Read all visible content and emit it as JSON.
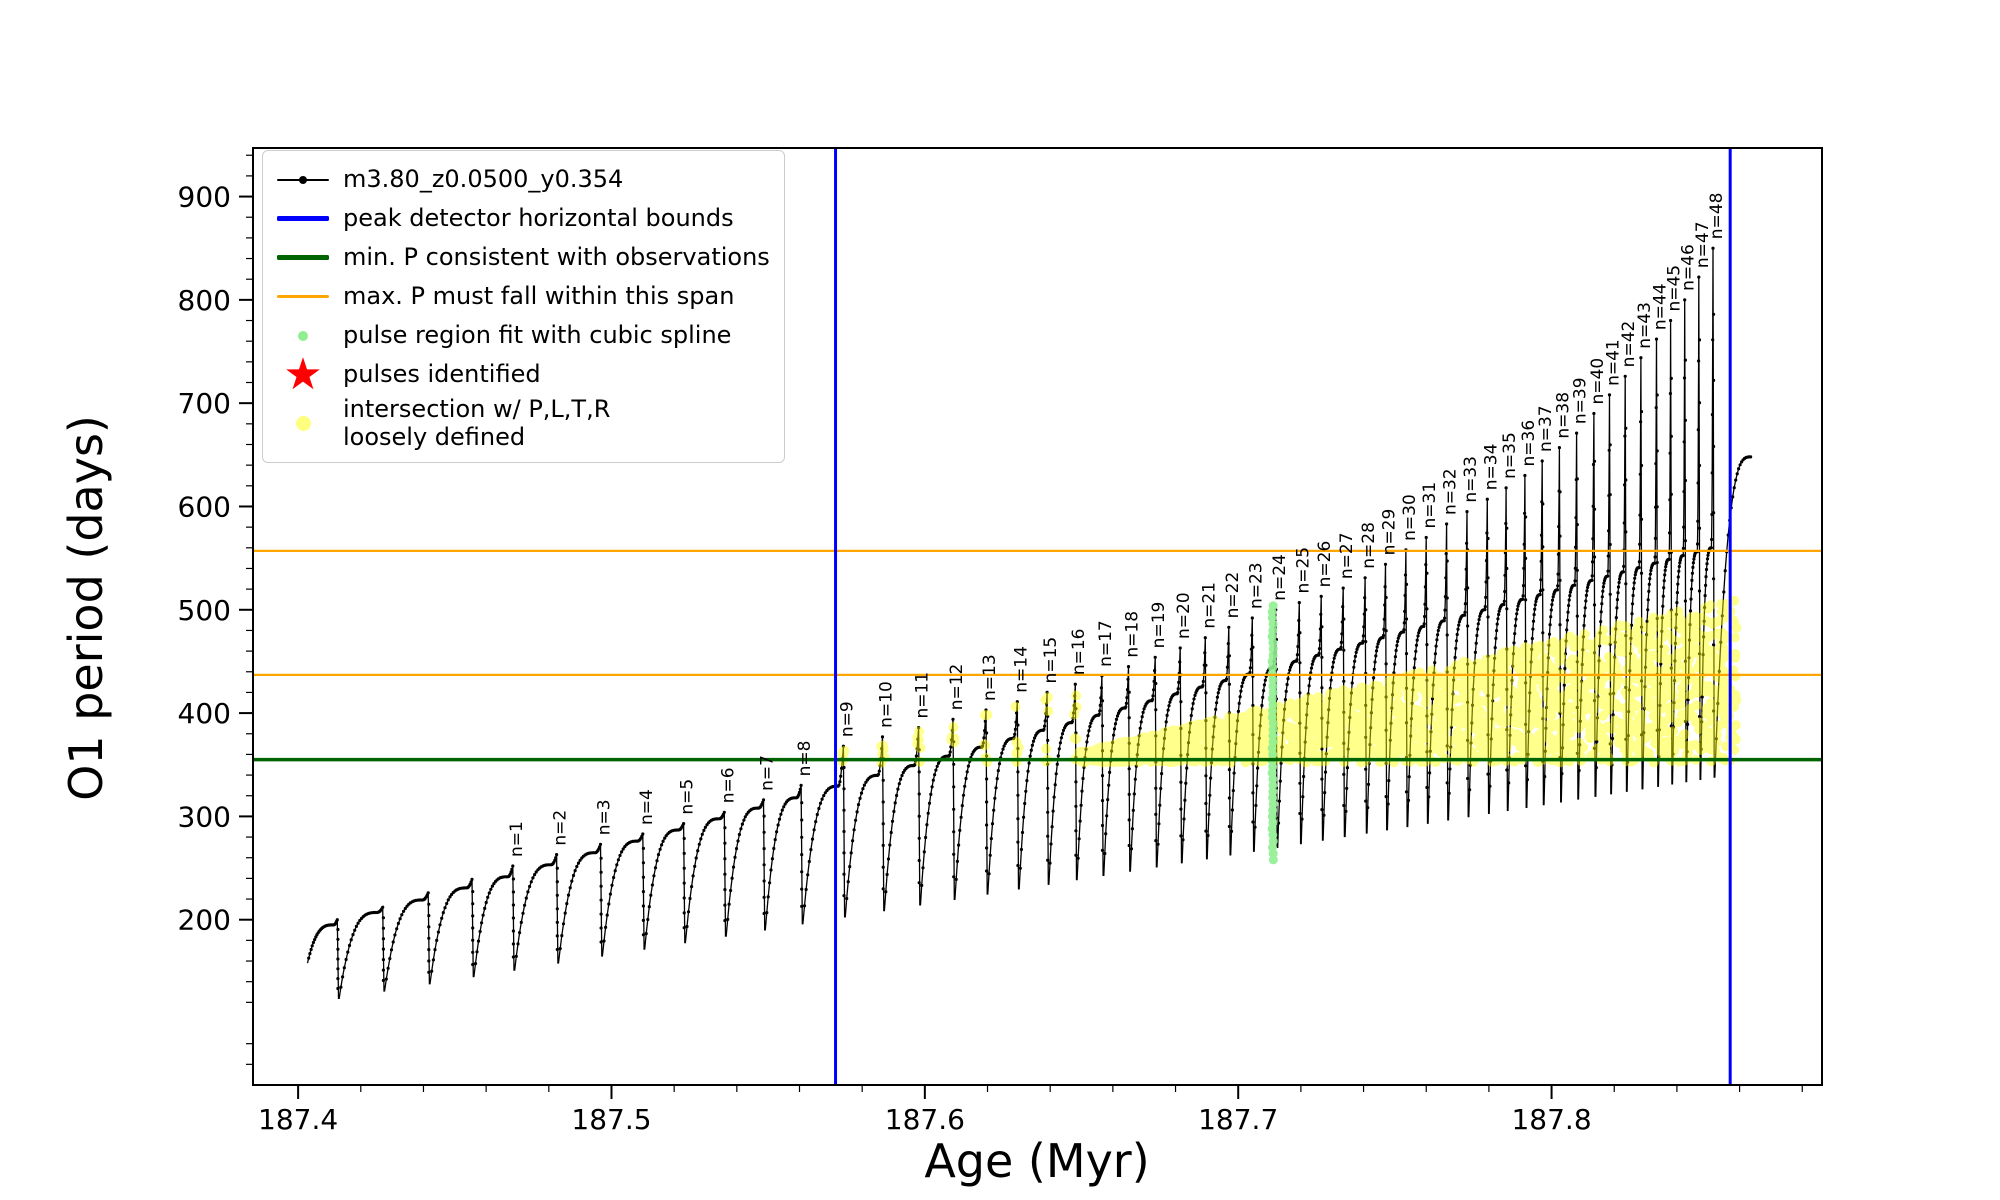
{
  "chart_data": {
    "type": "line",
    "title": "",
    "xlabel": "Age (Myr)",
    "ylabel": "O1 period (days)",
    "xlim": [
      187.3856,
      187.8863
    ],
    "ylim": [
      40,
      947
    ],
    "x_ticks": [
      {
        "v": 187.4,
        "label": "187.4"
      },
      {
        "v": 187.5,
        "label": "187.5"
      },
      {
        "v": 187.6,
        "label": "187.6"
      },
      {
        "v": 187.7,
        "label": "187.7"
      },
      {
        "v": 187.8,
        "label": "187.8"
      }
    ],
    "x_minor_step": 0.02,
    "y_ticks": [
      {
        "v": 200,
        "label": "200"
      },
      {
        "v": 300,
        "label": "300"
      },
      {
        "v": 400,
        "label": "400"
      },
      {
        "v": 500,
        "label": "500"
      },
      {
        "v": 600,
        "label": "600"
      },
      {
        "v": 700,
        "label": "700"
      },
      {
        "v": 800,
        "label": "800"
      },
      {
        "v": 900,
        "label": "900"
      }
    ],
    "y_minor_step": 20,
    "series": {
      "name": "m3.80_z0.0500_y0.354",
      "color": "#000000",
      "first_point": {
        "x": 187.403,
        "y": 158
      },
      "trough_envelope": {
        "x0": 187.405,
        "y0": 120,
        "x1": 187.852,
        "y1": 338
      },
      "cap_envelope": {
        "x0": 187.4125,
        "y0": 195,
        "x1": 187.8515,
        "y1": 560
      },
      "tail": {
        "x_end": 187.8635,
        "y_end": 648
      },
      "pulses": [
        {
          "label": null,
          "x": 187.4125,
          "peak": 200
        },
        {
          "label": null,
          "x": 187.427,
          "peak": 212
        },
        {
          "label": null,
          "x": 187.4415,
          "peak": 226
        },
        {
          "label": null,
          "x": 187.4555,
          "peak": 239
        },
        {
          "label": "n=1",
          "x": 187.4685,
          "peak": 252
        },
        {
          "label": "n=2",
          "x": 187.4825,
          "peak": 263
        },
        {
          "label": "n=3",
          "x": 187.4965,
          "peak": 273
        },
        {
          "label": "n=4",
          "x": 187.51,
          "peak": 283
        },
        {
          "label": "n=5",
          "x": 187.523,
          "peak": 293
        },
        {
          "label": "n=6",
          "x": 187.536,
          "peak": 304
        },
        {
          "label": "n=7",
          "x": 187.5485,
          "peak": 316
        },
        {
          "label": "n=8",
          "x": 187.5605,
          "peak": 330
        },
        {
          "label": "n=9",
          "x": 187.574,
          "peak": 368
        },
        {
          "label": "n=10",
          "x": 187.5865,
          "peak": 377
        },
        {
          "label": "n=11",
          "x": 187.598,
          "peak": 386
        },
        {
          "label": "n=12",
          "x": 187.609,
          "peak": 394
        },
        {
          "label": "n=13",
          "x": 187.6195,
          "peak": 403
        },
        {
          "label": "n=14",
          "x": 187.6295,
          "peak": 411
        },
        {
          "label": "n=15",
          "x": 187.639,
          "peak": 420
        },
        {
          "label": "n=16",
          "x": 187.648,
          "peak": 428
        },
        {
          "label": "n=17",
          "x": 187.6565,
          "peak": 436
        },
        {
          "label": "n=18",
          "x": 187.665,
          "peak": 445
        },
        {
          "label": "n=19",
          "x": 187.6735,
          "peak": 454
        },
        {
          "label": "n=20",
          "x": 187.6815,
          "peak": 463
        },
        {
          "label": "n=21",
          "x": 187.6895,
          "peak": 473
        },
        {
          "label": "n=22",
          "x": 187.697,
          "peak": 483
        },
        {
          "label": "n=23",
          "x": 187.7045,
          "peak": 492
        },
        {
          "label": "n=24",
          "x": 187.712,
          "peak": 500
        },
        {
          "label": "n=25",
          "x": 187.7195,
          "peak": 507
        },
        {
          "label": "n=26",
          "x": 187.7265,
          "peak": 513
        },
        {
          "label": "n=27",
          "x": 187.7335,
          "peak": 521
        },
        {
          "label": "n=28",
          "x": 187.7405,
          "peak": 531
        },
        {
          "label": "n=29",
          "x": 187.747,
          "peak": 544
        },
        {
          "label": "n=30",
          "x": 187.7535,
          "peak": 558
        },
        {
          "label": "n=31",
          "x": 187.76,
          "peak": 570
        },
        {
          "label": "n=32",
          "x": 187.7665,
          "peak": 583
        },
        {
          "label": "n=33",
          "x": 187.773,
          "peak": 595
        },
        {
          "label": "n=34",
          "x": 187.7795,
          "peak": 607
        },
        {
          "label": "n=35",
          "x": 187.7855,
          "peak": 618
        },
        {
          "label": "n=36",
          "x": 187.7915,
          "peak": 630
        },
        {
          "label": "n=37",
          "x": 187.797,
          "peak": 644
        },
        {
          "label": "n=38",
          "x": 187.8025,
          "peak": 657
        },
        {
          "label": "n=39",
          "x": 187.808,
          "peak": 671
        },
        {
          "label": "n=40",
          "x": 187.8135,
          "peak": 690
        },
        {
          "label": "n=41",
          "x": 187.8185,
          "peak": 708
        },
        {
          "label": "n=42",
          "x": 187.8235,
          "peak": 726
        },
        {
          "label": "n=43",
          "x": 187.8285,
          "peak": 744
        },
        {
          "label": "n=44",
          "x": 187.8335,
          "peak": 762
        },
        {
          "label": "n=45",
          "x": 187.838,
          "peak": 780
        },
        {
          "label": "n=46",
          "x": 187.8425,
          "peak": 800
        },
        {
          "label": "n=47",
          "x": 187.847,
          "peak": 822
        },
        {
          "label": "n=48",
          "x": 187.8515,
          "peak": 850
        }
      ]
    },
    "vlines": {
      "label": "peak detector horizontal bounds",
      "color": "#0000ff",
      "x": [
        187.5715,
        187.857
      ]
    },
    "hlines": [
      {
        "name": "min-p",
        "label": "min. P consistent with observations",
        "color": "#006400",
        "y": 355
      },
      {
        "name": "max-p-upper",
        "label": "max. P must fall within this span",
        "color": "#ffa500",
        "y": 557
      },
      {
        "name": "max-p-lower",
        "label": "max. P must fall within this span",
        "color": "#ffa500",
        "y": 437
      }
    ],
    "pulse_region_fit": {
      "label": "pulse region fit with cubic spline",
      "color": "#90ee90",
      "x": 187.711,
      "y_min": 258,
      "y_max": 505,
      "step": 6
    },
    "intersection_region": {
      "label": "intersection w/ P,L,T,R loosely defined",
      "color": "#ffff00",
      "x_min": 187.649,
      "x_max": 187.859,
      "y_bottom": 352,
      "top_start": 362,
      "top_end": 512
    },
    "intersection_tips": {
      "pulse_labels": [
        "n=9",
        "n=10",
        "n=11",
        "n=12",
        "n=13",
        "n=14",
        "n=15",
        "n=16"
      ],
      "y_floor": 352,
      "y_ceiling": 432
    }
  },
  "legend": {
    "items": [
      {
        "label": "m3.80_z0.0500_y0.354",
        "swatch": "line-dot",
        "color": "#000000",
        "lw": 2
      },
      {
        "label": "peak detector horizontal bounds",
        "swatch": "line",
        "color": "#0000ff",
        "lw": 5
      },
      {
        "label": "min. P consistent with observations",
        "swatch": "line",
        "color": "#006400",
        "lw": 5
      },
      {
        "label": "max. P must fall within this span",
        "swatch": "line",
        "color": "#ffa500",
        "lw": 3
      },
      {
        "label": "pulse region fit with cubic spline",
        "swatch": "dot",
        "color": "#90ee90",
        "size": 10
      },
      {
        "label": "pulses identified",
        "swatch": "star",
        "color": "#ff0000",
        "size": 44
      },
      {
        "label": "intersection w/ P,L,T,R\nloosely defined",
        "swatch": "dot",
        "color": "#ffff00",
        "size": 15,
        "opacity": 0.5
      }
    ]
  }
}
